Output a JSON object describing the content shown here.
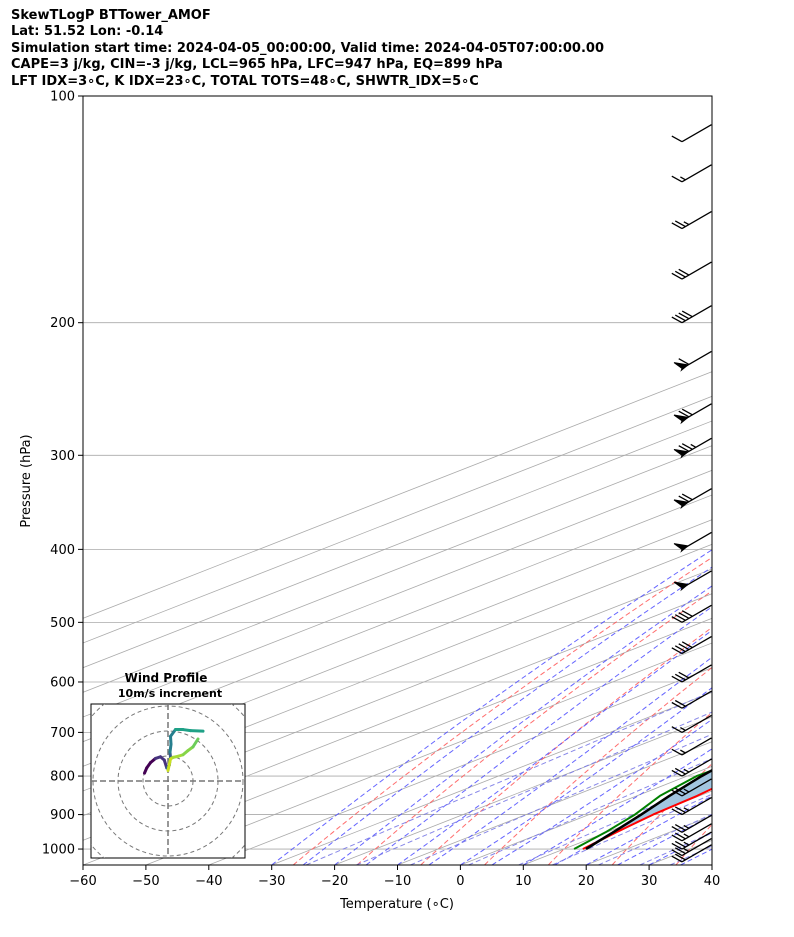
{
  "header": {
    "title": "SkewTLogP BTTower_AMOF",
    "line2": "Lat: 51.52   Lon: -0.14",
    "line3": "Simulation start time: 2024-04-05_00:00:00, Valid time: 2024-04-05T07:00:00.00",
    "line4": "CAPE=3 j/kg, CIN=-3 j/kg, LCL=965 hPa, LFC=947 hPa, EQ=899 hPa",
    "line5": "LFT IDX=3∘C, K IDX=23∘C, TOTAL TOTS=48∘C, SHWTR_IDX=5∘C"
  },
  "chart_data": [
    {
      "type": "line",
      "chart_kind": "skew-T log-P diagram",
      "xlabel": "Temperature (∘C)",
      "ylabel": "Pressure (hPa)",
      "xlim": [
        -60,
        40
      ],
      "ylim": [
        1050,
        100
      ],
      "y_scale": "log",
      "x_ticks": [
        -60,
        -50,
        -40,
        -30,
        -20,
        -10,
        0,
        10,
        20,
        30,
        40
      ],
      "x_tick_labels": [
        "−60",
        "−50",
        "−40",
        "−30",
        "−20",
        "−10",
        "0",
        "10",
        "20",
        "30",
        "40"
      ],
      "y_ticks": [
        100,
        200,
        300,
        400,
        500,
        600,
        700,
        800,
        900,
        1000
      ],
      "grid": true,
      "colors": {
        "temperature": "#ff0000",
        "dewpoint": "#008000",
        "parcel": "#000000",
        "cape_fill": "#a2c6e0",
        "dry_adiabat": "#ff5555",
        "moist_adiabat": "#4a4aff",
        "mixing_ratio": "#7a7ae6",
        "isotherm": "#aaaaaa"
      },
      "series": [
        {
          "role": "temperature",
          "points": [
            [
              1000,
              13
            ],
            [
              950,
              11.5
            ],
            [
              900,
              10.2
            ],
            [
              850,
              9.6
            ],
            [
              800,
              8.2
            ],
            [
              750,
              5.9
            ],
            [
              700,
              3.8
            ],
            [
              650,
              1.2
            ],
            [
              600,
              -0.5
            ],
            [
              550,
              -2.7
            ],
            [
              500,
              -5.0
            ],
            [
              450,
              -8.1
            ],
            [
              400,
              -12.5
            ],
            [
              350,
              -16.5
            ],
            [
              300,
              -21.2
            ],
            [
              250,
              -27.7
            ],
            [
              225,
              -32.5
            ],
            [
              210,
              -35.3
            ],
            [
              200,
              -36.7
            ],
            [
              180,
              -38.6
            ],
            [
              150,
              -44.7
            ],
            [
              125,
              -49.4
            ],
            [
              112,
              -53.3
            ],
            [
              100,
              -54.7
            ]
          ]
        },
        {
          "role": "dewpoint",
          "points": [
            [
              1000,
              11.6
            ],
            [
              950,
              9.8
            ],
            [
              900,
              7.3
            ],
            [
              850,
              3.7
            ],
            [
              800,
              1.5
            ],
            [
              750,
              2.3
            ],
            [
              700,
              0.9
            ],
            [
              650,
              -5.0
            ],
            [
              600,
              -13.6
            ],
            [
              550,
              -21.6
            ],
            [
              500,
              -29.0
            ],
            [
              480,
              -32.5
            ],
            [
              450,
              -31.0
            ],
            [
              400,
              -28.0
            ],
            [
              350,
              -32.0
            ],
            [
              300,
              -42.0
            ],
            [
              250,
              -51.0
            ],
            [
              210,
              -56.0
            ],
            [
              200,
              -57.0
            ],
            [
              190,
              -61.5
            ],
            [
              180,
              -65.5
            ],
            [
              170,
              -68.0
            ],
            [
              160,
              -68.5
            ],
            [
              140,
              -67.8
            ],
            [
              120,
              -66.5
            ],
            [
              100,
              -63.5
            ]
          ]
        },
        {
          "role": "parcel",
          "points": [
            [
              1000,
              13.5
            ],
            [
              950,
              11.0
            ],
            [
              900,
              8.3
            ],
            [
              850,
              5.2
            ],
            [
              800,
              2.3
            ],
            [
              750,
              -0.2
            ],
            [
              700,
              -3.0
            ],
            [
              650,
              -6.0
            ],
            [
              600,
              -9.5
            ],
            [
              550,
              -13.5
            ],
            [
              500,
              -17.5
            ],
            [
              450,
              -22.5
            ],
            [
              400,
              -28.0
            ],
            [
              350,
              -34.0
            ],
            [
              300,
              -42.0
            ],
            [
              250,
              -52.0
            ],
            [
              200,
              -63.0
            ],
            [
              150,
              -75.0
            ],
            [
              125,
              -81.0
            ],
            [
              100,
              -87.0
            ]
          ]
        }
      ],
      "wind_barbs": [
        {
          "pressure": 1040,
          "speed_kt": 20
        },
        {
          "pressure": 1020,
          "speed_kt": 25
        },
        {
          "pressure": 1000,
          "speed_kt": 25
        },
        {
          "pressure": 975,
          "speed_kt": 25
        },
        {
          "pressure": 950,
          "speed_kt": 25
        },
        {
          "pressure": 900,
          "speed_kt": 25
        },
        {
          "pressure": 850,
          "speed_kt": 25
        },
        {
          "pressure": 800,
          "speed_kt": 25
        },
        {
          "pressure": 750,
          "speed_kt": 15
        },
        {
          "pressure": 700,
          "speed_kt": 15
        },
        {
          "pressure": 650,
          "speed_kt": 20
        },
        {
          "pressure": 600,
          "speed_kt": 30
        },
        {
          "pressure": 550,
          "speed_kt": 40
        },
        {
          "pressure": 500,
          "speed_kt": 40
        },
        {
          "pressure": 450,
          "speed_kt": 50
        },
        {
          "pressure": 400,
          "speed_kt": 50
        },
        {
          "pressure": 350,
          "speed_kt": 70
        },
        {
          "pressure": 300,
          "speed_kt": 75
        },
        {
          "pressure": 270,
          "speed_kt": 70
        },
        {
          "pressure": 230,
          "speed_kt": 60
        },
        {
          "pressure": 200,
          "speed_kt": 40
        },
        {
          "pressure": 175,
          "speed_kt": 30
        },
        {
          "pressure": 150,
          "speed_kt": 25
        },
        {
          "pressure": 130,
          "speed_kt": 15
        },
        {
          "pressure": 115,
          "speed_kt": 10
        }
      ]
    },
    {
      "type": "line",
      "chart_kind": "hodograph",
      "title": "Wind Profile",
      "subtitle": "10m/s increment",
      "ring_step_ms": 10,
      "grid": true,
      "points": [
        [
          -9.4,
          1.5
        ],
        [
          -8.5,
          2.5
        ],
        [
          -7,
          3.5
        ],
        [
          -5,
          4.3
        ],
        [
          -3,
          4.6
        ],
        [
          -1.5,
          4.0
        ],
        [
          -0.5,
          2.5
        ],
        [
          0.5,
          3.0
        ],
        [
          1,
          4.5
        ],
        [
          0.8,
          5.5
        ],
        [
          1.2,
          7.0
        ],
        [
          1.0,
          8.5
        ],
        [
          3.0,
          9.8
        ],
        [
          6.0,
          9.8
        ],
        [
          9.0,
          9.6
        ],
        [
          14.0,
          9.5
        ]
      ],
      "lower_branch": [
        [
          0,
          2.0
        ],
        [
          1.0,
          4.2
        ],
        [
          2.0,
          4.5
        ],
        [
          4.0,
          4.7
        ],
        [
          6.0,
          5.0
        ],
        [
          8.0,
          5.8
        ],
        [
          10.0,
          6.5
        ],
        [
          12.0,
          8.0
        ]
      ]
    }
  ]
}
